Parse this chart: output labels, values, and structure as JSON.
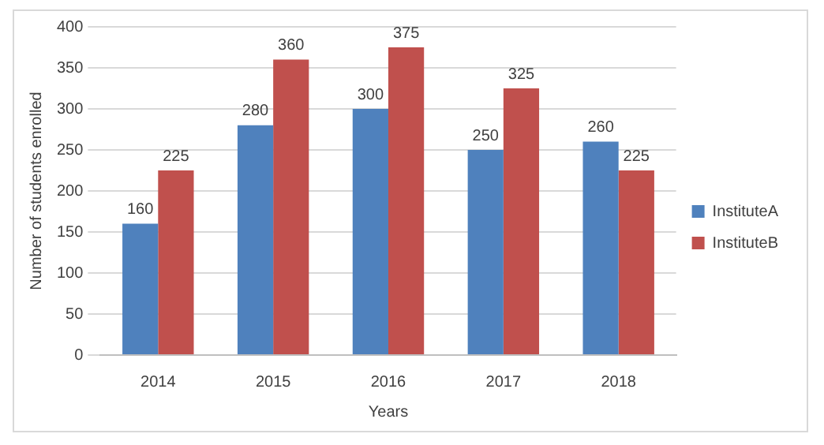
{
  "chart_data": {
    "type": "bar",
    "xlabel": "Years",
    "ylabel": "Number of students enrolled",
    "categories": [
      "2014",
      "2015",
      "2016",
      "2017",
      "2018"
    ],
    "series": [
      {
        "name": "InstituteA",
        "color": "#4f81bd",
        "values": [
          160,
          280,
          300,
          250,
          260
        ]
      },
      {
        "name": "InstituteB",
        "color": "#c0504d",
        "values": [
          225,
          360,
          375,
          325,
          225
        ]
      }
    ],
    "ylim": [
      0,
      400
    ],
    "yticks": [
      0,
      50,
      100,
      150,
      200,
      250,
      300,
      350,
      400
    ],
    "grid": "y",
    "legend": "right",
    "data_labels": true
  }
}
